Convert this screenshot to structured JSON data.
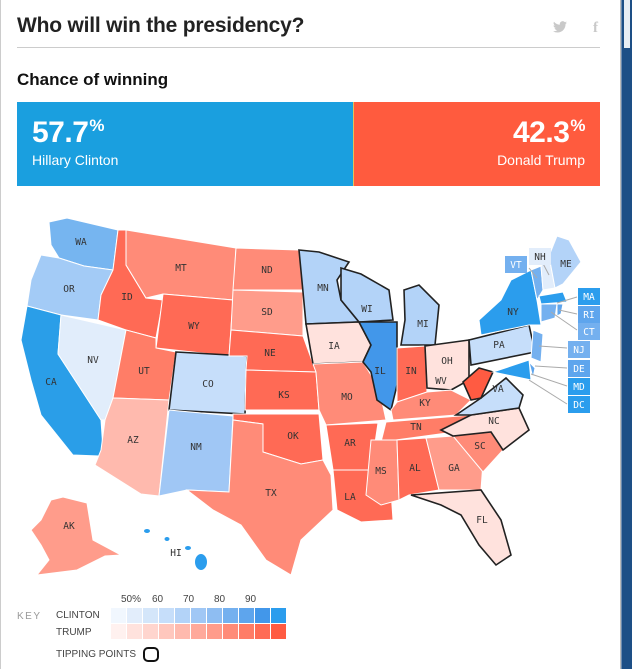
{
  "header": {
    "title": "Who will win the presidency?",
    "share": {
      "twitter_icon": "t",
      "facebook_icon": "f"
    }
  },
  "chance": {
    "subtitle": "Chance of winning",
    "clinton": {
      "pct": "57.7",
      "sign": "%",
      "name": "Hillary Clinton",
      "color": "#1a9fdf"
    },
    "trump": {
      "pct": "42.3",
      "sign": "%",
      "name": "Donald Trump",
      "color": "#ff5b3e"
    }
  },
  "map": {
    "states": {
      "WA": "Clinton",
      "OR": "Clinton",
      "CA": "Clinton",
      "NV": "Clinton",
      "ID": "Trump",
      "MT": "Trump",
      "WY": "Trump",
      "UT": "Trump",
      "AZ": "Trump",
      "CO": "Clinton",
      "NM": "Clinton",
      "ND": "Trump",
      "SD": "Trump",
      "NE": "Trump",
      "KS": "Trump",
      "OK": "Trump",
      "TX": "Trump",
      "MN": "Clinton",
      "IA": "Trump",
      "MO": "Trump",
      "AR": "Trump",
      "LA": "Trump",
      "WI": "Clinton",
      "IL": "Clinton",
      "MI": "Clinton",
      "IN": "Trump",
      "OH": "Trump",
      "KY": "Trump",
      "TN": "Trump",
      "MS": "Trump",
      "AL": "Trump",
      "GA": "Trump",
      "FL": "Trump",
      "SC": "Trump",
      "NC": "Trump",
      "VA": "Clinton",
      "WV": "Trump",
      "PA": "Clinton",
      "NY": "Clinton",
      "VT": "Clinton",
      "NH": "Clinton",
      "ME": "Clinton",
      "MA": "Clinton",
      "RI": "Clinton",
      "CT": "Clinton",
      "NJ": "Clinton",
      "DE": "Clinton",
      "MD": "Clinton",
      "DC": "Clinton",
      "AK": "Trump",
      "HI": "Clinton"
    },
    "tipping_points": [
      "MN",
      "WI",
      "MI",
      "IA",
      "IL",
      "OH",
      "PA",
      "CO",
      "VA",
      "NC",
      "FL"
    ],
    "callouts": [
      "VT",
      "NH",
      "ME",
      "MA",
      "RI",
      "CT",
      "NJ",
      "DE",
      "MD",
      "DC"
    ]
  },
  "key": {
    "label": "KEY",
    "ticks": [
      "50%",
      "60",
      "70",
      "80",
      "90"
    ],
    "clinton_label": "CLINTON",
    "trump_label": "TRUMP",
    "tipping_label": "TIPPING POINTS",
    "clinton_scale": [
      "#f1f7fe",
      "#e2edfb",
      "#d4e6fa",
      "#c6defa",
      "#b3d3f8",
      "#a0c7f5",
      "#8ebdf2",
      "#74b0ef",
      "#5ea5ed",
      "#4297ea",
      "#2b9ded"
    ],
    "trump_scale": [
      "#fff1ef",
      "#ffe2dd",
      "#ffd5ce",
      "#ffc7bd",
      "#ffbaae",
      "#ffa99b",
      "#ff9c8b",
      "#ff8b78",
      "#ff7d67",
      "#ff6c55",
      "#ff5b42"
    ]
  }
}
